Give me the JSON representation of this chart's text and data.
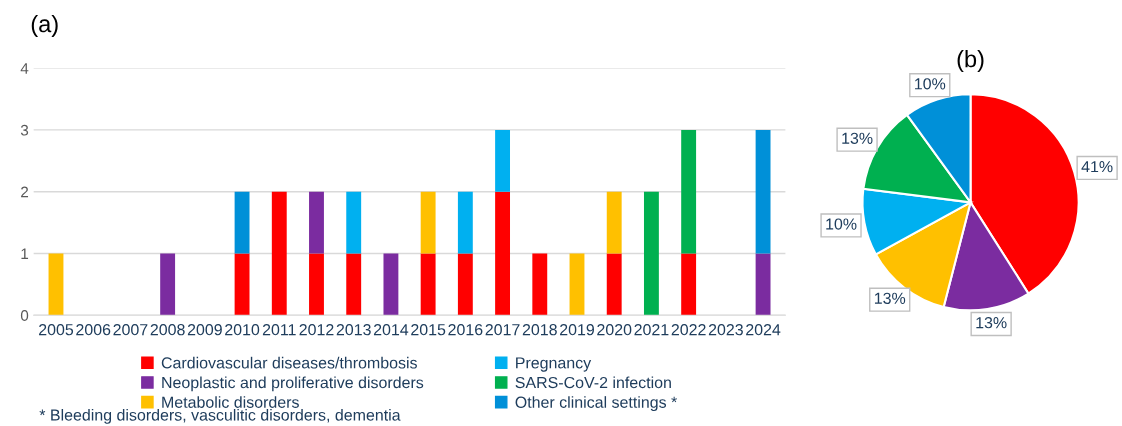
{
  "chart_data": [
    {
      "type": "bar",
      "title": "(a)",
      "stacked": true,
      "grid": "y",
      "legend": "bottom",
      "categories": [
        "2005",
        "2006",
        "2007",
        "2008",
        "2009",
        "2010",
        "2011",
        "2012",
        "2013",
        "2014",
        "2015",
        "2016",
        "2017",
        "2018",
        "2019",
        "2020",
        "2021",
        "2022",
        "2023",
        "2024"
      ],
      "ylim": [
        0,
        4
      ],
      "yticks": [
        0,
        1,
        2,
        3,
        4
      ],
      "series": [
        {
          "name": "Cardiovascular diseases/thrombosis",
          "color": "#ff0000",
          "values": [
            0,
            0,
            0,
            0,
            0,
            1,
            2,
            1,
            1,
            0,
            1,
            1,
            2,
            1,
            0,
            1,
            0,
            1,
            0,
            0
          ]
        },
        {
          "name": "Neoplastic and proliferative disorders",
          "color": "#7b2ca0",
          "values": [
            0,
            0,
            0,
            1,
            0,
            0,
            0,
            1,
            0,
            1,
            0,
            0,
            0,
            0,
            0,
            0,
            0,
            0,
            0,
            1
          ]
        },
        {
          "name": "Metabolic disorders",
          "color": "#ffc000",
          "values": [
            1,
            0,
            0,
            0,
            0,
            0,
            0,
            0,
            0,
            0,
            1,
            0,
            0,
            0,
            1,
            1,
            0,
            0,
            0,
            0
          ]
        },
        {
          "name": "Pregnancy",
          "color": "#00b0f0",
          "values": [
            0,
            0,
            0,
            0,
            0,
            0,
            0,
            0,
            1,
            0,
            0,
            1,
            1,
            0,
            0,
            0,
            0,
            0,
            0,
            0
          ]
        },
        {
          "name": "SARS-CoV-2 infection",
          "color": "#00b050",
          "values": [
            0,
            0,
            0,
            0,
            0,
            0,
            0,
            0,
            0,
            0,
            0,
            0,
            0,
            0,
            0,
            0,
            2,
            2,
            0,
            0
          ]
        },
        {
          "name": "Other clinical settings *",
          "color": "#0090d8",
          "values": [
            0,
            0,
            0,
            0,
            0,
            1,
            0,
            0,
            0,
            0,
            0,
            0,
            0,
            0,
            0,
            0,
            0,
            0,
            0,
            2
          ]
        }
      ],
      "annotations": [
        "* Bleeding disorders, vasculitic disorders, dementia"
      ]
    },
    {
      "type": "pie",
      "title": "(b)",
      "categories": [
        null,
        null,
        null,
        null,
        null,
        null
      ],
      "values": [
        41,
        13,
        13,
        10,
        13,
        10
      ],
      "colors": [
        "#ff0000",
        "#7b2ca0",
        "#ffc000",
        "#00b0f0",
        "#00b050",
        "#0090d8"
      ],
      "value_labels": [
        "41%",
        "13%",
        "13%",
        "10%",
        "13%",
        "10%"
      ]
    }
  ]
}
